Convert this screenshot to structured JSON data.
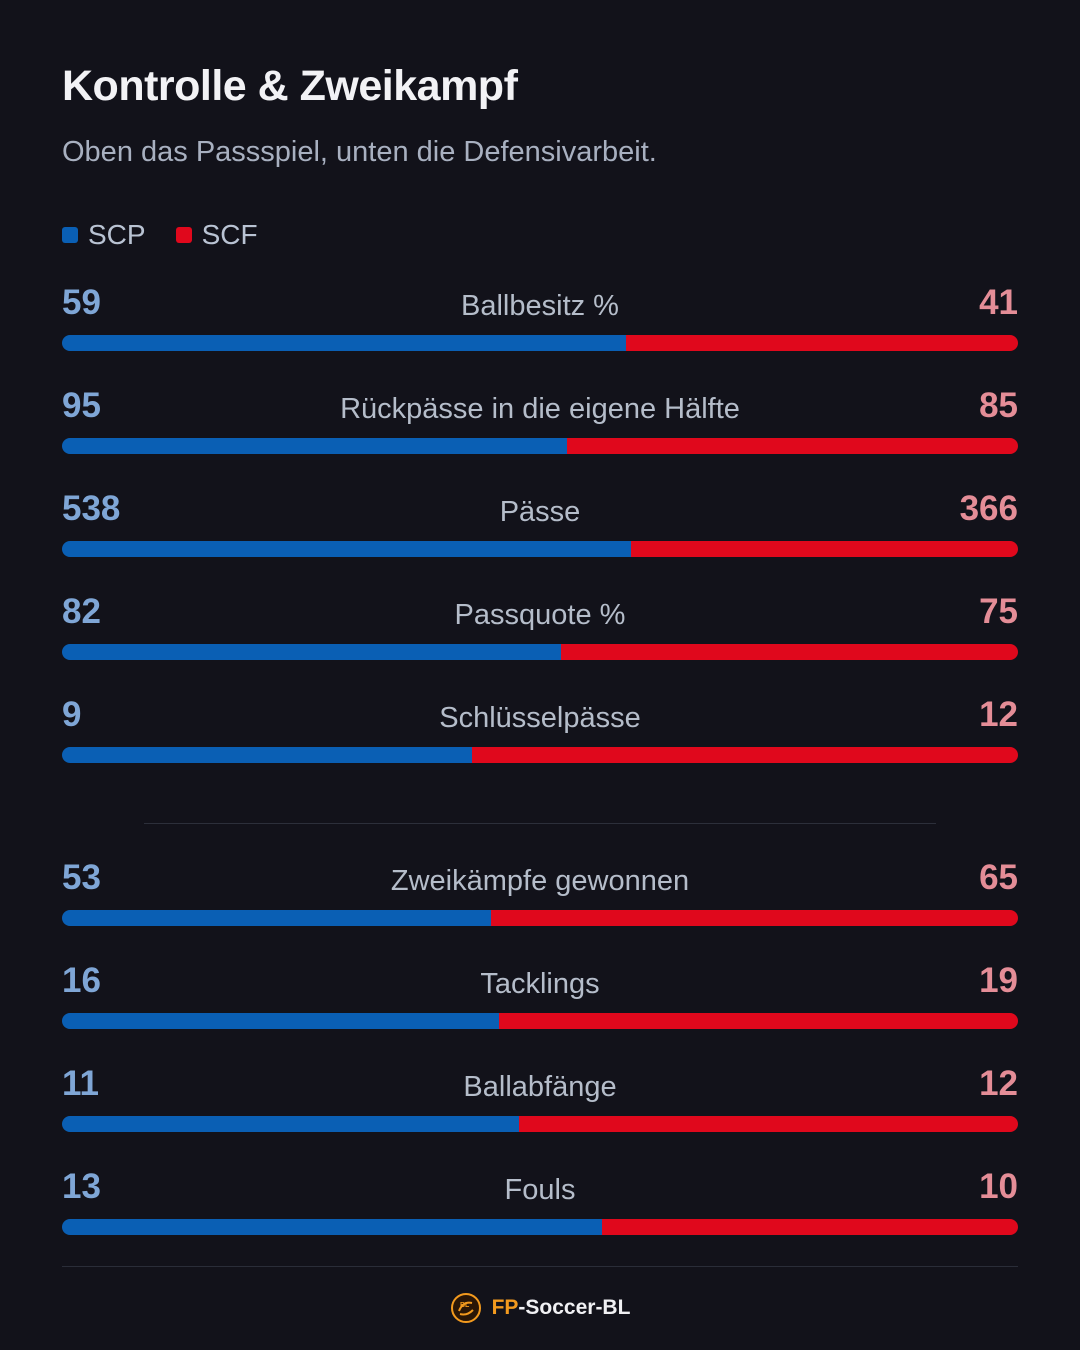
{
  "colors": {
    "background": "#12121a",
    "team_a": "#0a5fb4",
    "team_b": "#e0081c"
  },
  "header": {
    "title": "Kontrolle & Zweikampf",
    "subtitle": "Oben das Passspiel, unten die Defensivarbeit."
  },
  "footer": {
    "brand_prefix": "FP",
    "brand_suffix": "-Soccer-BL",
    "logo_icon": "soccer-ball-logo-icon"
  },
  "chart_data": {
    "type": "bar",
    "orientation": "horizontal-stacked-share",
    "legend_position": "top-left",
    "series": [
      {
        "name": "SCP",
        "color": "#0a5fb4",
        "values": [
          59,
          95,
          538,
          82,
          9,
          53,
          16,
          11,
          13
        ]
      },
      {
        "name": "SCF",
        "color": "#e0081c",
        "values": [
          41,
          85,
          366,
          75,
          12,
          65,
          19,
          12,
          10
        ]
      }
    ],
    "categories": [
      "Ballbesitz %",
      "Rückpässe in die eigene Hälfte",
      "Pässe",
      "Passquote %",
      "Schlüsselpässe",
      "Zweikämpfe gewonnen",
      "Tacklings",
      "Ballabfänge",
      "Fouls"
    ],
    "groups": [
      {
        "rows": [
          0,
          1,
          2,
          3,
          4
        ]
      },
      {
        "rows": [
          5,
          6,
          7,
          8
        ]
      }
    ]
  }
}
